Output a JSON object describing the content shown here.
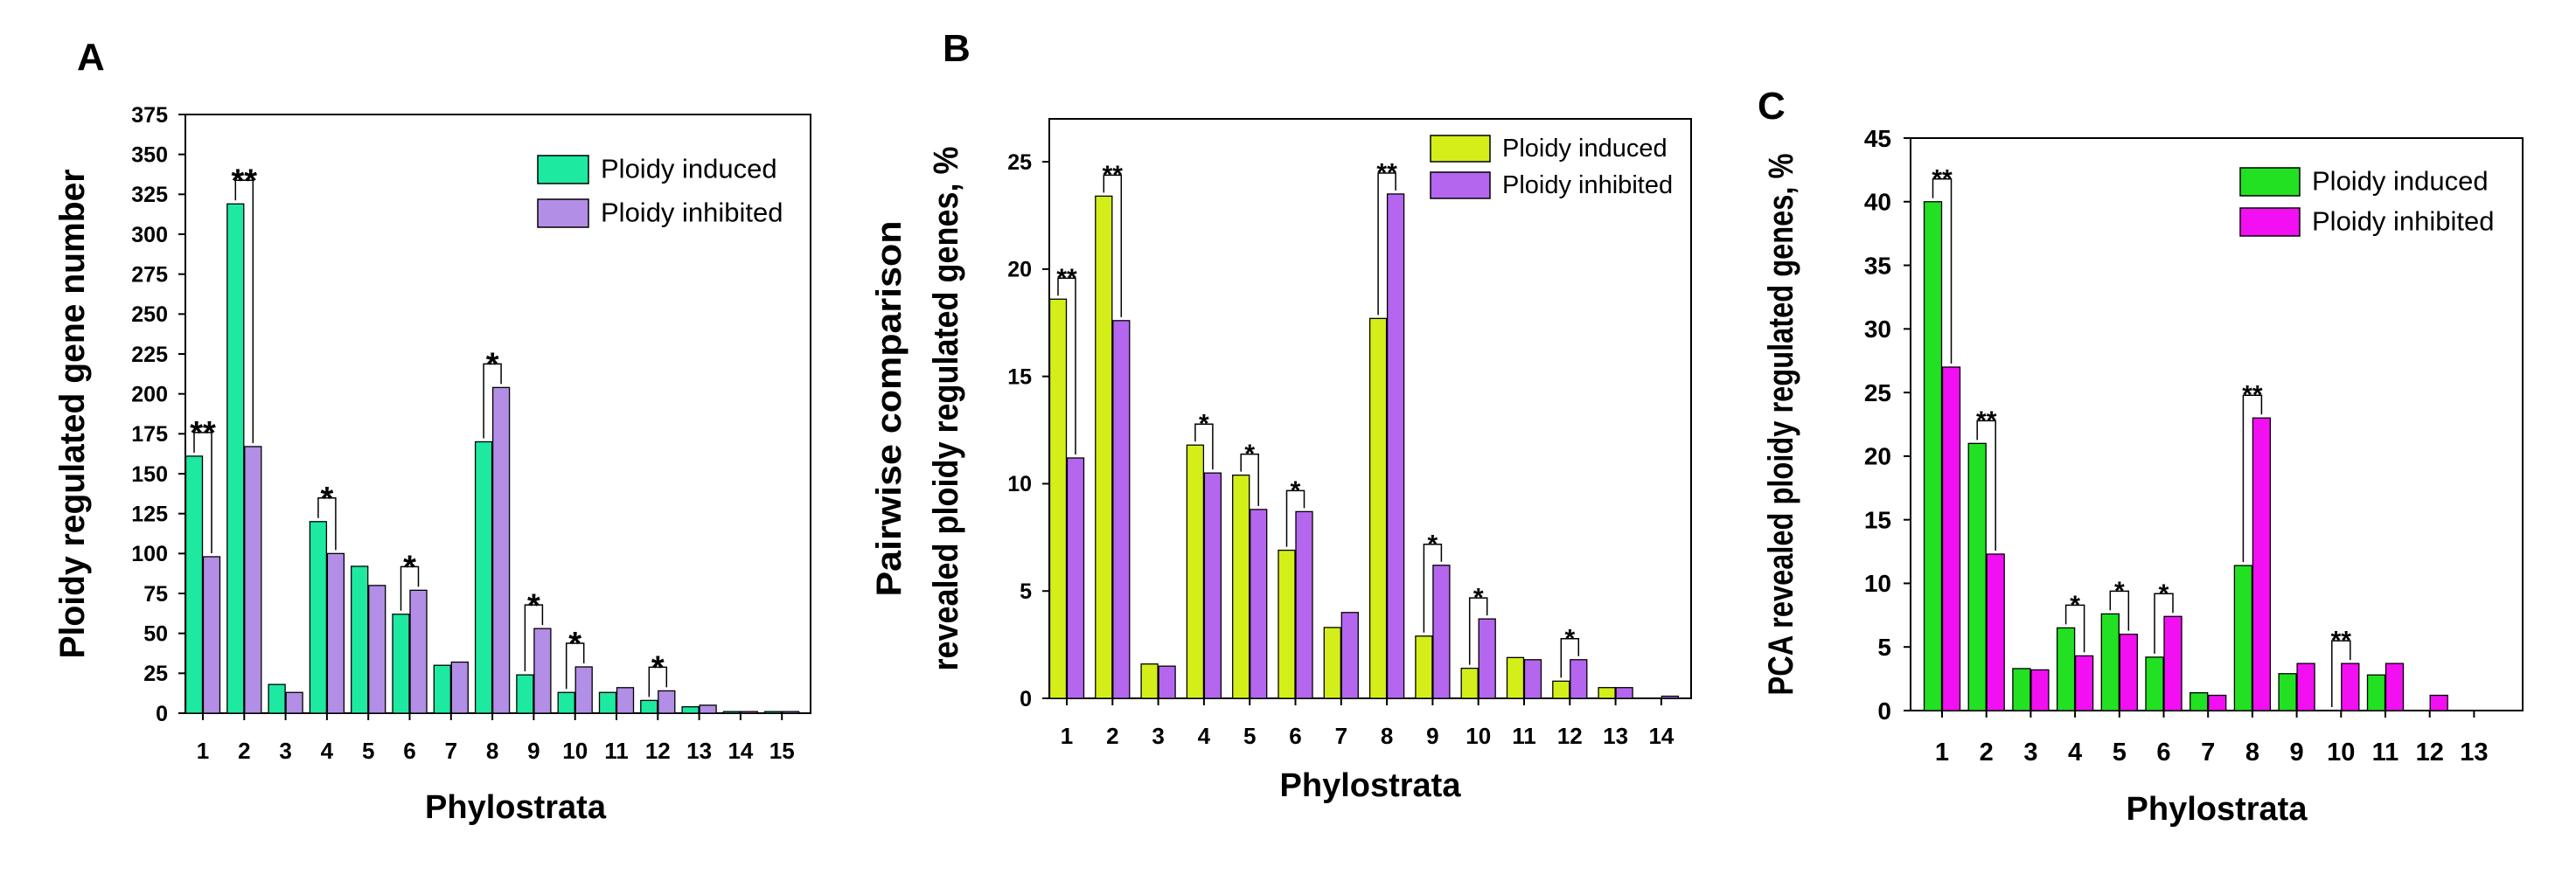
{
  "chart_data": [
    {
      "panel": "A",
      "type": "bar",
      "ylabel": "Ploidy regulated gene number",
      "xlabel": "Phylostrata",
      "ylim": [
        0,
        375
      ],
      "yticks": [
        0,
        25,
        50,
        75,
        100,
        125,
        150,
        175,
        200,
        225,
        250,
        275,
        300,
        325,
        350,
        375
      ],
      "categories": [
        "1",
        "2",
        "3",
        "4",
        "5",
        "6",
        "7",
        "8",
        "9",
        "10",
        "11",
        "12",
        "13",
        "14",
        "15"
      ],
      "series": [
        {
          "name": "Ploidy induced",
          "color": "#1de9a0",
          "values": [
            161,
            319,
            18,
            120,
            92,
            62,
            30,
            170,
            24,
            13,
            13,
            8,
            4,
            1,
            1
          ]
        },
        {
          "name": "Ploidy inhibited",
          "color": "#b28ee6",
          "values": [
            98,
            167,
            13,
            100,
            80,
            77,
            32,
            204,
            53,
            29,
            16,
            14,
            5,
            1,
            1
          ]
        }
      ],
      "annotations": [
        {
          "cat": 0,
          "label": "**"
        },
        {
          "cat": 1,
          "label": "**"
        },
        {
          "cat": 3,
          "label": "*"
        },
        {
          "cat": 5,
          "label": "*"
        },
        {
          "cat": 7,
          "label": "*"
        },
        {
          "cat": 8,
          "label": "*"
        },
        {
          "cat": 9,
          "label": "*"
        },
        {
          "cat": 11,
          "label": "*"
        }
      ]
    },
    {
      "panel": "B",
      "type": "bar",
      "ylabel": [
        "Pairwise comparison",
        "revealed ploidy regulated genes, %"
      ],
      "xlabel": "Phylostrata",
      "ylim": [
        0,
        27
      ],
      "yticks": [
        0,
        5,
        10,
        15,
        20,
        25
      ],
      "categories": [
        "1",
        "2",
        "3",
        "4",
        "5",
        "6",
        "7",
        "8",
        "9",
        "10",
        "11",
        "12",
        "13",
        "14"
      ],
      "series": [
        {
          "name": "Ploidy induced",
          "color": "#d4ee1a",
          "values": [
            18.6,
            23.4,
            1.6,
            11.8,
            10.4,
            6.9,
            3.3,
            17.7,
            2.9,
            1.4,
            1.9,
            0.8,
            0.5,
            0.0
          ]
        },
        {
          "name": "Ploidy inhibited",
          "color": "#b466ee",
          "values": [
            11.2,
            17.6,
            1.5,
            10.5,
            8.8,
            8.7,
            4.0,
            23.5,
            6.2,
            3.7,
            1.8,
            1.8,
            0.5,
            0.1
          ]
        }
      ],
      "annotations": [
        {
          "cat": 0,
          "label": "**"
        },
        {
          "cat": 1,
          "label": "**"
        },
        {
          "cat": 3,
          "label": "*"
        },
        {
          "cat": 4,
          "label": "*"
        },
        {
          "cat": 5,
          "label": "*"
        },
        {
          "cat": 7,
          "label": "**"
        },
        {
          "cat": 8,
          "label": "*"
        },
        {
          "cat": 9,
          "label": "*"
        },
        {
          "cat": 11,
          "label": "*"
        }
      ]
    },
    {
      "panel": "C",
      "type": "bar",
      "ylabel": "PCA revealed ploidy regulated genes, %",
      "xlabel": "Phylostrata",
      "ylim": [
        0,
        45
      ],
      "yticks": [
        0,
        5,
        10,
        15,
        20,
        25,
        30,
        35,
        40,
        45
      ],
      "categories": [
        "1",
        "2",
        "3",
        "4",
        "5",
        "6",
        "7",
        "8",
        "9",
        "10",
        "11",
        "12",
        "13"
      ],
      "series": [
        {
          "name": "Ploidy induced",
          "color": "#22e022",
          "values": [
            40,
            21,
            3.3,
            6.5,
            7.6,
            4.2,
            1.4,
            11.4,
            2.9,
            0,
            2.8,
            0,
            0
          ]
        },
        {
          "name": "Ploidy inhibited",
          "color": "#f20ff2",
          "values": [
            27,
            12.3,
            3.2,
            4.3,
            6.0,
            7.4,
            1.2,
            23,
            3.7,
            3.7,
            3.7,
            1.2,
            0
          ]
        }
      ],
      "annotations": [
        {
          "cat": 0,
          "label": "**"
        },
        {
          "cat": 1,
          "label": "**"
        },
        {
          "cat": 3,
          "label": "*"
        },
        {
          "cat": 4,
          "label": "*"
        },
        {
          "cat": 5,
          "label": "*"
        },
        {
          "cat": 7,
          "label": "**"
        },
        {
          "cat": 9,
          "label": "**"
        }
      ]
    }
  ]
}
